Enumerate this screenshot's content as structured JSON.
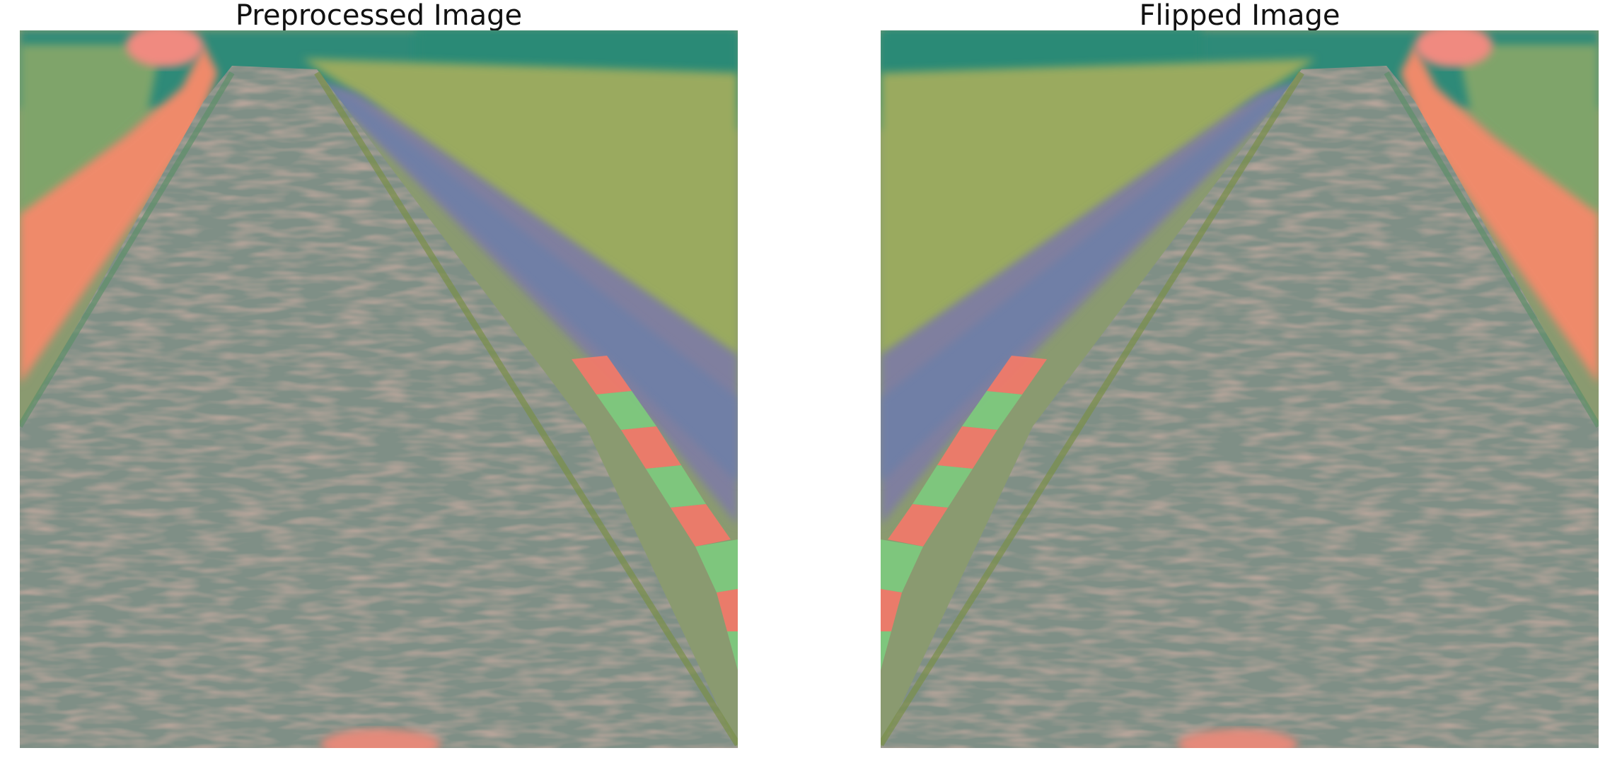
{
  "figure": {
    "panels": [
      {
        "title": "Preprocessed Image",
        "flipped": false
      },
      {
        "title": "Flipped Image",
        "flipped": true
      }
    ]
  },
  "palette": {
    "trees": "#2f8a78",
    "grass": "#9aa95f",
    "dirt": "#ef8a6a",
    "road": "#7f8f86",
    "road_speck": "#d88a7a",
    "curb_red": "#f07a6a",
    "curb_green": "#7ec97e",
    "shadow": "#6f7fa0"
  }
}
